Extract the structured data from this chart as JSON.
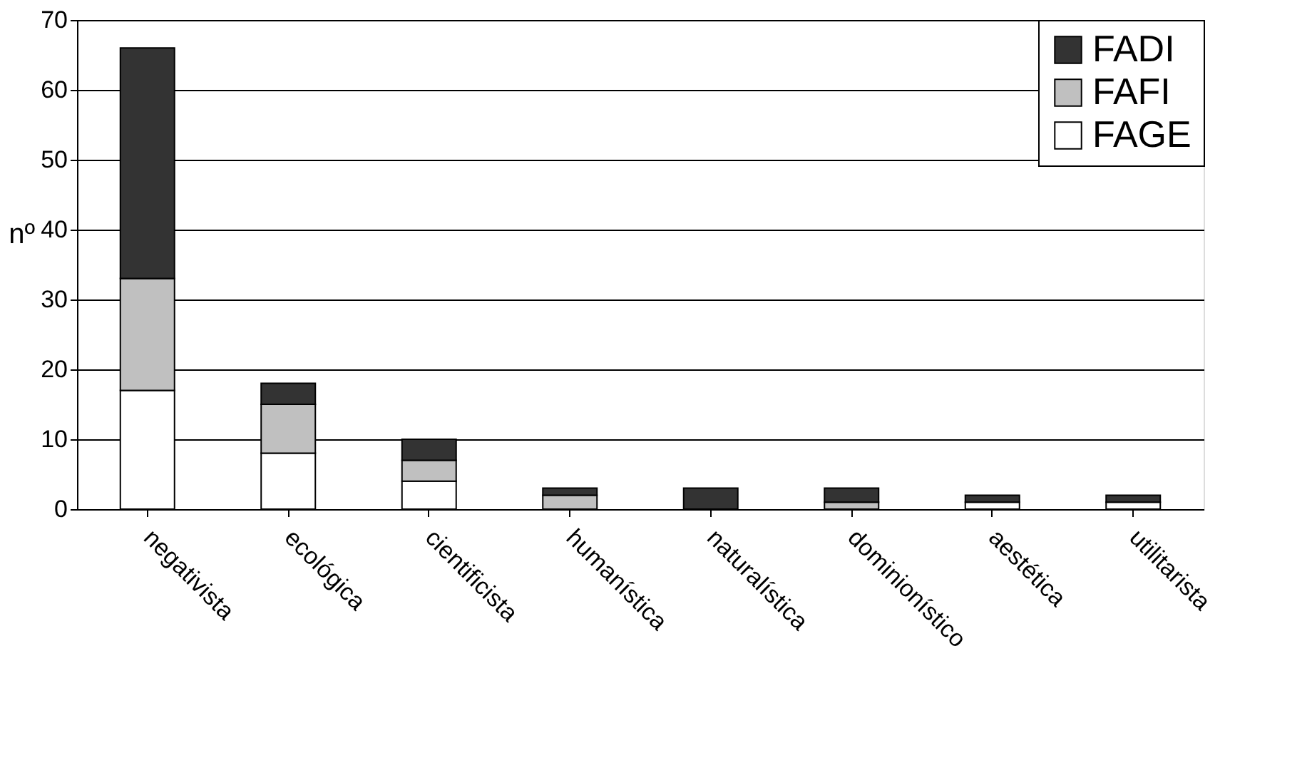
{
  "chart_data": {
    "type": "bar",
    "stacked": true,
    "ylabel": "nº",
    "categories": [
      "negativista",
      "ecológica",
      "cientificista",
      "humanística",
      "naturalística",
      "dominionístico",
      "aestética",
      "utilitarista"
    ],
    "series": [
      {
        "name": "FAGE",
        "color": "#ffffff",
        "values": [
          17,
          8,
          4,
          0,
          0,
          0,
          1,
          1
        ]
      },
      {
        "name": "FAFI",
        "color": "#c0c0c0",
        "values": [
          16,
          7,
          3,
          2,
          0,
          1,
          0,
          0
        ]
      },
      {
        "name": "FADI",
        "color": "#333333",
        "values": [
          33,
          3,
          3,
          1,
          3,
          2,
          1,
          1
        ]
      }
    ],
    "ylim": [
      0,
      70
    ],
    "yticks": [
      0,
      10,
      20,
      30,
      40,
      50,
      60,
      70
    ],
    "grid": "y",
    "legend": "top right"
  }
}
